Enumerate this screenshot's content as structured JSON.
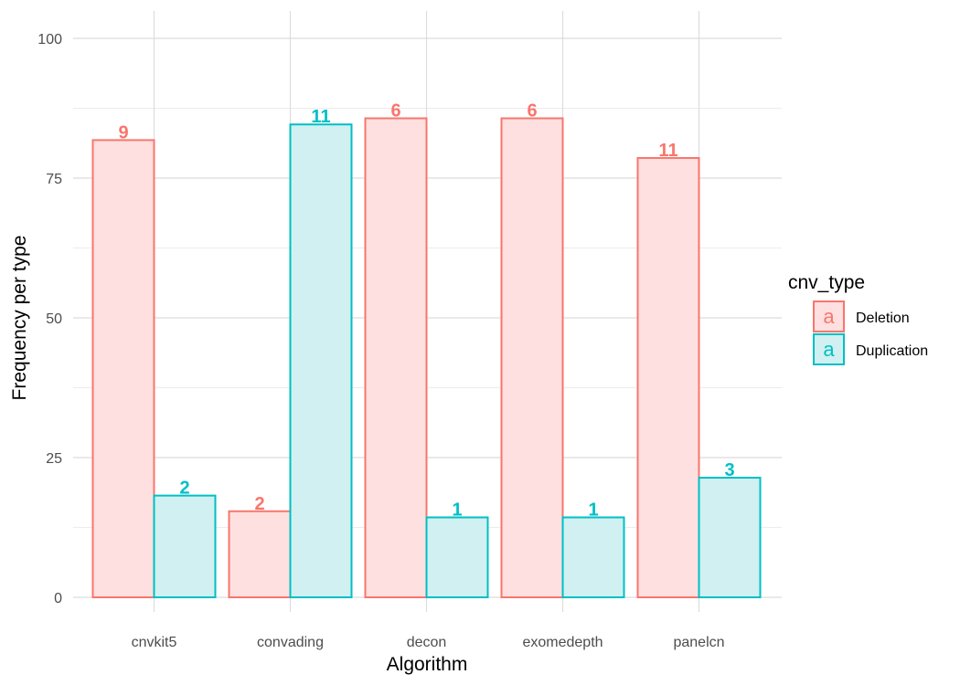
{
  "chart_data": {
    "type": "bar",
    "title": "",
    "xlabel": "Algorithm",
    "ylabel": "Frequency per type",
    "categories": [
      "cnvkit5",
      "convading",
      "decon",
      "exomedepth",
      "panelcn"
    ],
    "ylim": [
      0,
      100
    ],
    "yticks": [
      0,
      25,
      50,
      75,
      100
    ],
    "grid": true,
    "legend": {
      "title": "cnv_type",
      "position": "right",
      "key_glyph": "a"
    },
    "series": [
      {
        "name": "Deletion",
        "color": "#F8766D",
        "fill": "#FDE0DF",
        "values": [
          81.8,
          15.4,
          85.7,
          85.7,
          78.6
        ],
        "labels": [
          "9",
          "2",
          "6",
          "6",
          "11"
        ]
      },
      {
        "name": "Duplication",
        "color": "#00BFC4",
        "fill": "#D0F0F1",
        "values": [
          18.2,
          84.6,
          14.3,
          14.3,
          21.4
        ],
        "labels": [
          "2",
          "11",
          "1",
          "1",
          "3"
        ]
      }
    ]
  }
}
